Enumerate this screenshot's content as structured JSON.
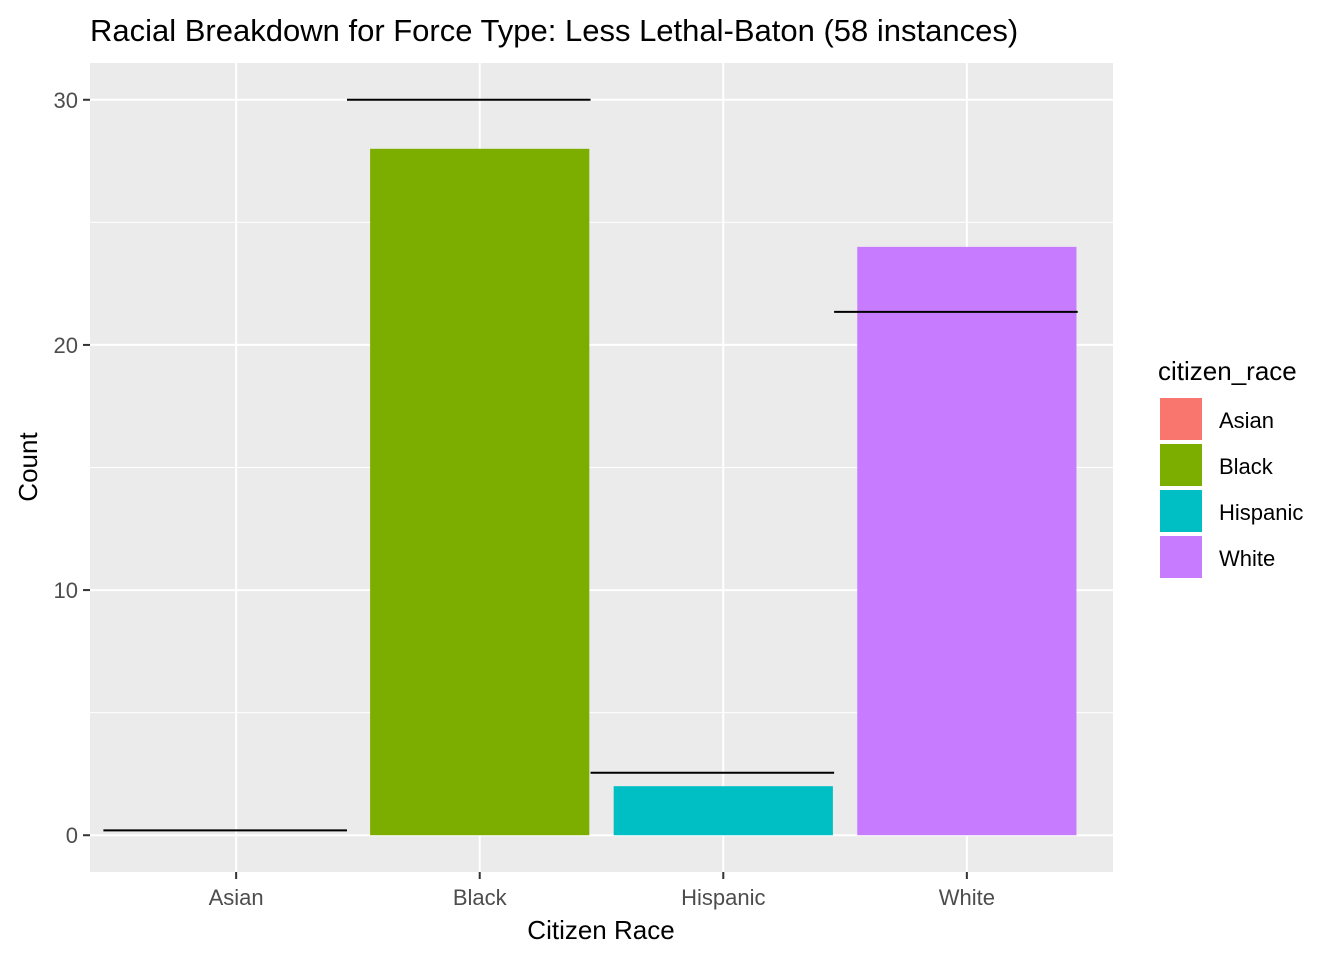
{
  "chart_data": {
    "type": "bar",
    "title": "Racial Breakdown for Force Type: Less Lethal-Baton (58 instances)",
    "xlabel": "Citizen Race",
    "ylabel": "Count",
    "categories": [
      "Asian",
      "Black",
      "Hispanic",
      "White"
    ],
    "values": [
      0,
      28,
      2,
      24
    ],
    "reference_lines": [
      0.2,
      30,
      2.55,
      21.35
    ],
    "colors": [
      "#F8766D",
      "#7CAE00",
      "#00BFC4",
      "#C77CFF"
    ],
    "ylim": [
      -1.5,
      31.5
    ],
    "yticks": [
      0,
      10,
      20,
      30
    ],
    "legend": {
      "title": "citizen_race",
      "position": "right",
      "entries": [
        "Asian",
        "Black",
        "Hispanic",
        "White"
      ]
    },
    "grid": true
  }
}
